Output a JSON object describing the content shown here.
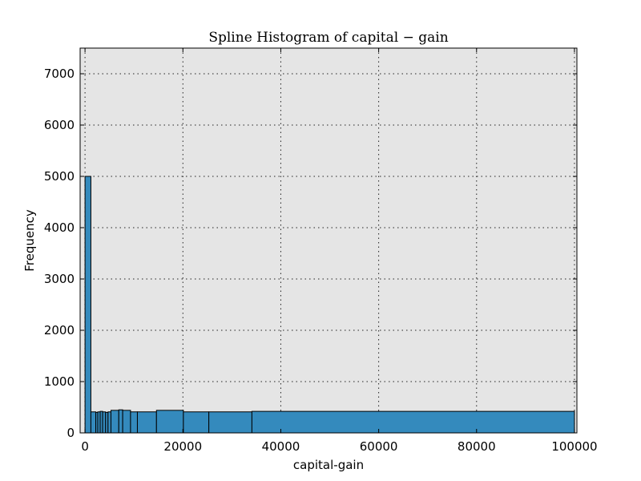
{
  "chart_data": {
    "type": "bar",
    "title": "Spline Histogram of capital − gain",
    "xlabel": "capital-gain",
    "ylabel": "Frequency",
    "xlim": [
      -1000,
      100500
    ],
    "ylim": [
      0,
      7500
    ],
    "grid": true,
    "xticks": [
      0,
      20000,
      40000,
      60000,
      80000,
      100000
    ],
    "xtick_labels": [
      "0",
      "20000",
      "40000",
      "60000",
      "80000",
      "100000"
    ],
    "yticks": [
      0,
      1000,
      2000,
      3000,
      4000,
      5000,
      6000,
      7000
    ],
    "ytick_labels": [
      "0",
      "1000",
      "2000",
      "3000",
      "4000",
      "5000",
      "6000",
      "7000"
    ],
    "bins": [
      {
        "x0": 0,
        "x1": 1200,
        "value": 5000
      },
      {
        "x0": 1200,
        "x1": 2200,
        "value": 410
      },
      {
        "x0": 2200,
        "x1": 2600,
        "value": 400
      },
      {
        "x0": 2600,
        "x1": 3100,
        "value": 410
      },
      {
        "x0": 3100,
        "x1": 3600,
        "value": 420
      },
      {
        "x0": 3600,
        "x1": 4200,
        "value": 410
      },
      {
        "x0": 4200,
        "x1": 4700,
        "value": 400
      },
      {
        "x0": 4700,
        "x1": 5300,
        "value": 410
      },
      {
        "x0": 5300,
        "x1": 6900,
        "value": 440
      },
      {
        "x0": 6900,
        "x1": 7700,
        "value": 450
      },
      {
        "x0": 7700,
        "x1": 9300,
        "value": 440
      },
      {
        "x0": 9300,
        "x1": 10700,
        "value": 410
      },
      {
        "x0": 10700,
        "x1": 14600,
        "value": 410
      },
      {
        "x0": 14600,
        "x1": 20100,
        "value": 440
      },
      {
        "x0": 20100,
        "x1": 25300,
        "value": 410
      },
      {
        "x0": 25300,
        "x1": 34100,
        "value": 410
      },
      {
        "x0": 34100,
        "x1": 100000,
        "value": 420
      }
    ]
  }
}
